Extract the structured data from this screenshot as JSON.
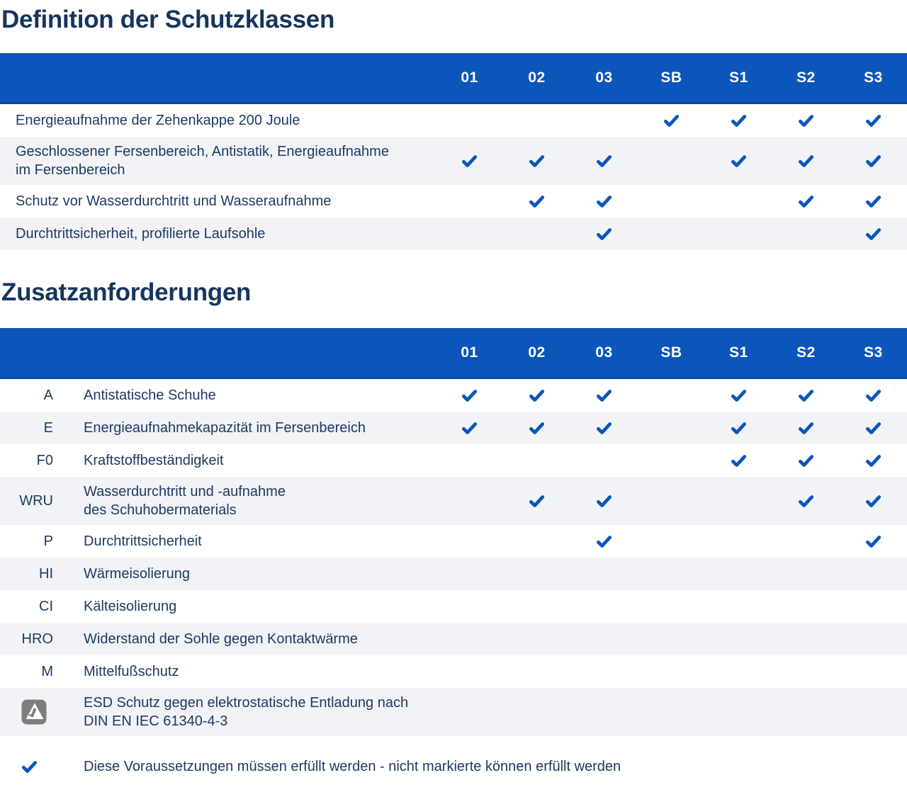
{
  "colors": {
    "accent_blue": "#0C56BB",
    "accent_blue_dark": "#0A4A9E",
    "row_alt_bg": "#F1F3F7",
    "text_navy": "#1E3A61",
    "title_navy": "#16355D",
    "esd_gray": "#7D7D7D"
  },
  "columns": [
    "01",
    "02",
    "03",
    "SB",
    "S1",
    "S2",
    "S3"
  ],
  "section1": {
    "title": "Definition der Schutzklassen",
    "rows": [
      {
        "label": "Energieaufnahme der Zehenkappe 200 Joule",
        "checks": [
          0,
          0,
          0,
          1,
          1,
          1,
          1
        ]
      },
      {
        "label": "Geschlossener Fersenbereich, Antistatik, Energieaufnahme\nim Fersenbereich",
        "checks": [
          1,
          1,
          1,
          0,
          1,
          1,
          1
        ]
      },
      {
        "label": "Schutz vor Wasserdurchtritt und Wasseraufnahme",
        "checks": [
          0,
          1,
          1,
          0,
          0,
          1,
          1
        ]
      },
      {
        "label": "Durchtrittsicherheit, profilierte Laufsohle",
        "checks": [
          0,
          0,
          1,
          0,
          0,
          0,
          1
        ]
      }
    ]
  },
  "section2": {
    "title": "Zusatzanforderungen",
    "rows": [
      {
        "code": "A",
        "label": "Antistatische Schuhe",
        "checks": [
          1,
          1,
          1,
          0,
          1,
          1,
          1
        ]
      },
      {
        "code": "E",
        "label": "Energieaufnahmekapazität im Fersenbereich",
        "checks": [
          1,
          1,
          1,
          0,
          1,
          1,
          1
        ]
      },
      {
        "code": "F0",
        "label": "Kraftstoffbeständigkeit",
        "checks": [
          0,
          0,
          0,
          0,
          1,
          1,
          1
        ]
      },
      {
        "code": "WRU",
        "label": "Wasserdurchtritt und -aufnahme\ndes Schuhobermaterials",
        "checks": [
          0,
          1,
          1,
          0,
          0,
          1,
          1
        ]
      },
      {
        "code": "P",
        "label": "Durchtrittsicherheit",
        "checks": [
          0,
          0,
          1,
          0,
          0,
          0,
          1
        ]
      },
      {
        "code": "HI",
        "label": "Wärmeisolierung",
        "checks": [
          0,
          0,
          0,
          0,
          0,
          0,
          0
        ]
      },
      {
        "code": "CI",
        "label": "Kälteisolierung",
        "checks": [
          0,
          0,
          0,
          0,
          0,
          0,
          0
        ]
      },
      {
        "code": "HRO",
        "label": "Widerstand der Sohle gegen Kontaktwärme",
        "checks": [
          0,
          0,
          0,
          0,
          0,
          0,
          0
        ]
      },
      {
        "code": "M",
        "label": "Mittelfußschutz",
        "checks": [
          0,
          0,
          0,
          0,
          0,
          0,
          0
        ]
      },
      {
        "icon": "esd-icon",
        "label": "ESD Schutz gegen elektrostatische Entladung nach\nDIN EN IEC 61340-4-3",
        "checks": [
          0,
          0,
          0,
          0,
          0,
          0,
          0
        ]
      }
    ]
  },
  "legend": {
    "icon": "check-icon",
    "text": "Diese Voraussetzungen müssen erfüllt werden - nicht markierte können erfüllt werden"
  }
}
